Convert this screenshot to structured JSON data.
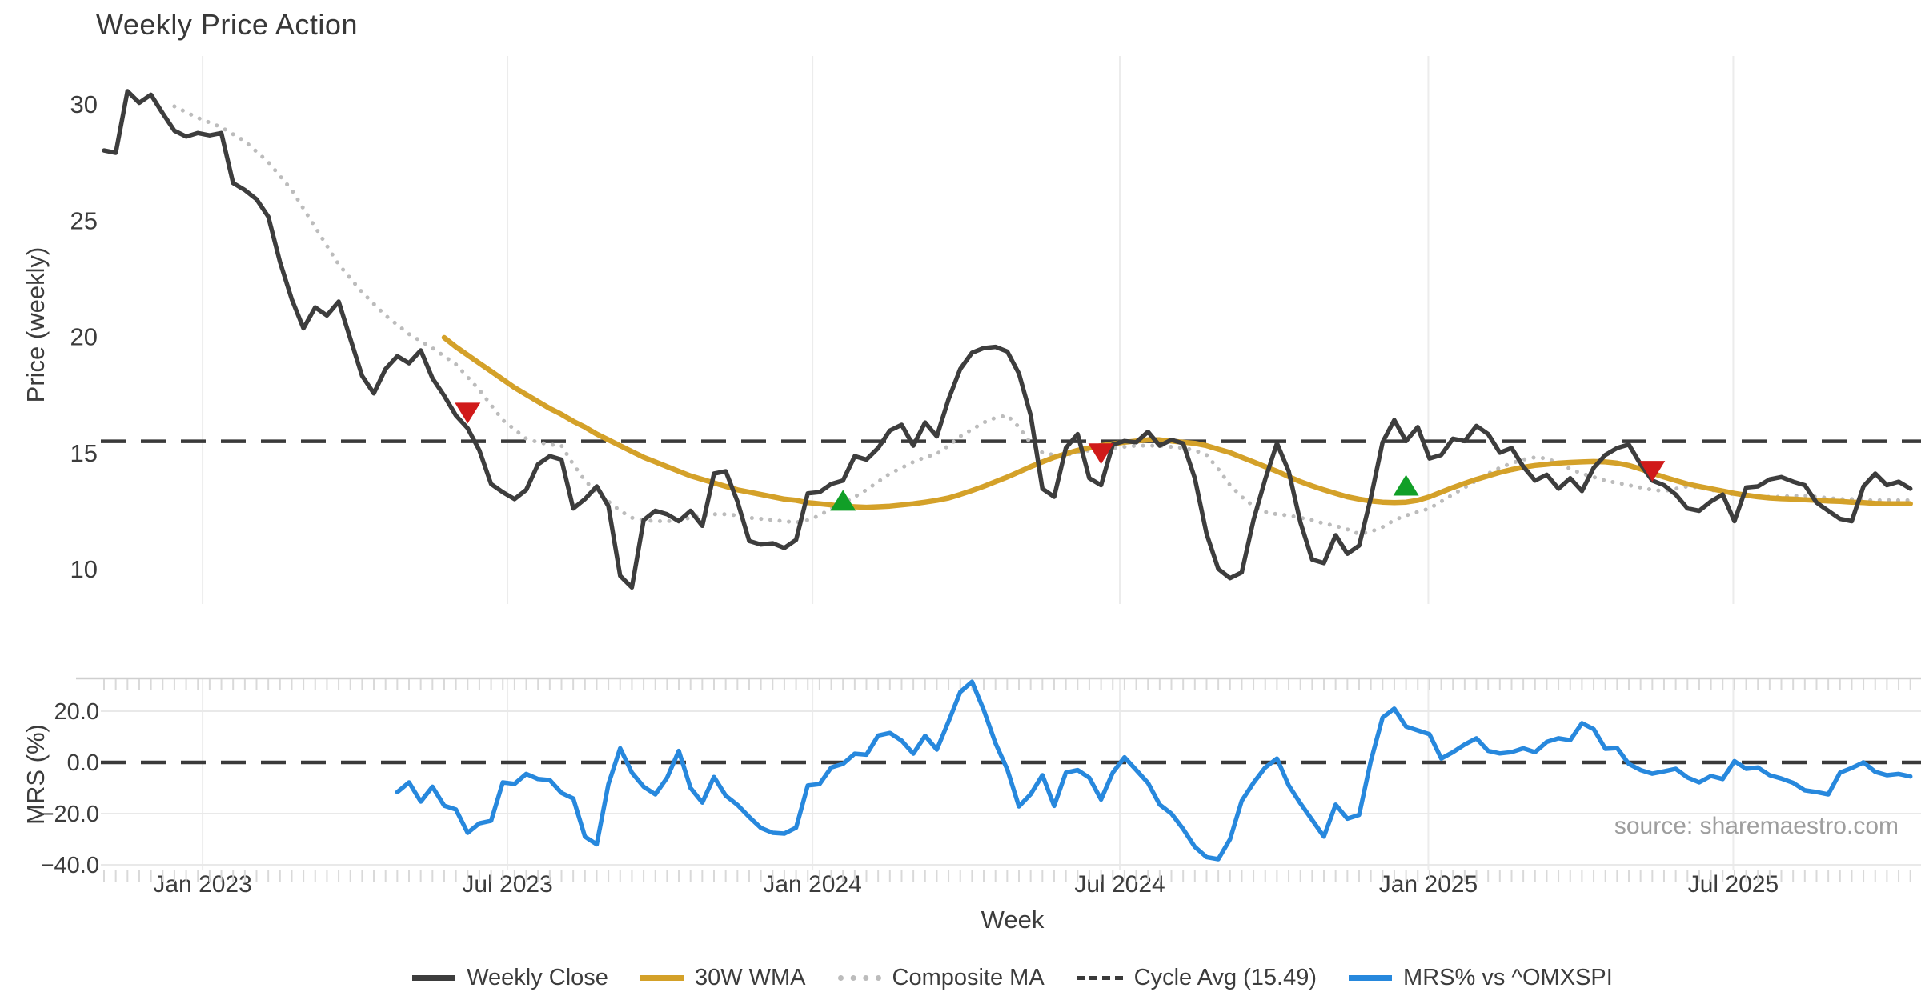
{
  "source_text": "source: sharemaestro.com",
  "colors": {
    "weekly_close": "#3d3d3d",
    "wma_30w": "#d4a129",
    "composite_ma": "#bcbcbc",
    "cycle_avg": "#3a3a3a",
    "mrs_blue": "#2788dd",
    "sell_marker": "#d01a1a",
    "buy_marker": "#119f27",
    "gridline": "#ececec",
    "mrs_hgrid": "#e9e9e9",
    "panel_spine": "#cfcfcf",
    "minor_tick": "#d9d9d9",
    "text": "#3c3c3c",
    "source": "#9e9e9e"
  },
  "legend": {
    "items": [
      {
        "label": "Weekly Close",
        "swatch": "solid-dark"
      },
      {
        "label": "30W WMA",
        "swatch": "solid-gold"
      },
      {
        "label": "Composite MA",
        "swatch": "dotted-gray"
      },
      {
        "label": "Cycle Avg (15.49)",
        "swatch": "dashed-dark"
      },
      {
        "label": "MRS% vs ^OMXSPI",
        "swatch": "solid-blue"
      }
    ]
  },
  "chart_data": {
    "type": "line",
    "title": "Weekly Price Action",
    "xlabel": "Week",
    "weeks_total": 155,
    "x_ticks": [
      {
        "week": 8.4,
        "label": "Jan 2023"
      },
      {
        "week": 34.4,
        "label": "Jul 2023"
      },
      {
        "week": 60.4,
        "label": "Jan 2024"
      },
      {
        "week": 86.6,
        "label": "Jul 2024"
      },
      {
        "week": 112.9,
        "label": "Jan 2025"
      },
      {
        "week": 138.9,
        "label": "Jul 2025"
      }
    ],
    "panels": [
      {
        "name": "price",
        "ylabel": "Price (weekly)",
        "ylim": [
          8.5,
          32.5
        ],
        "grid": "vertical-only",
        "yticks": [
          {
            "v": 30,
            "label": "30"
          },
          {
            "v": 25,
            "label": "25"
          },
          {
            "v": 20,
            "label": "20"
          },
          {
            "v": 15,
            "label": "15"
          },
          {
            "v": 10,
            "label": "10"
          }
        ],
        "cycle_avg": 15.49,
        "series": [
          {
            "name": "Weekly Close",
            "style": "solid",
            "start_week": 0,
            "values": [
              28.0,
              27.9,
              30.55,
              30.05,
              30.4,
              29.6,
              28.85,
              28.6,
              28.75,
              28.65,
              28.75,
              26.6,
              26.3,
              25.9,
              25.15,
              23.2,
              21.6,
              20.35,
              21.25,
              20.9,
              21.5,
              19.9,
              18.3,
              17.55,
              18.6,
              19.15,
              18.85,
              19.4,
              18.2,
              17.45,
              16.6,
              16.05,
              15.1,
              13.65,
              13.3,
              13.0,
              13.4,
              14.5,
              14.85,
              14.7,
              12.6,
              13.0,
              13.55,
              12.7,
              9.7,
              9.2,
              12.1,
              12.5,
              12.35,
              12.05,
              12.5,
              11.85,
              14.1,
              14.2,
              12.9,
              11.2,
              11.05,
              11.1,
              10.9,
              11.25,
              13.25,
              13.3,
              13.65,
              13.8,
              14.85,
              14.7,
              15.2,
              15.95,
              16.2,
              15.3,
              16.3,
              15.7,
              17.3,
              18.6,
              19.3,
              19.5,
              19.55,
              19.35,
              18.4,
              16.6,
              13.45,
              13.1,
              15.2,
              15.8,
              13.9,
              13.6,
              15.35,
              15.5,
              15.45,
              15.9,
              15.3,
              15.55,
              15.4,
              13.9,
              11.5,
              10.0,
              9.6,
              9.85,
              12.1,
              13.85,
              15.4,
              14.2,
              12.0,
              10.4,
              10.25,
              11.45,
              10.65,
              11.0,
              13.05,
              15.45,
              16.4,
              15.5,
              16.1,
              14.75,
              14.9,
              15.6,
              15.5,
              16.15,
              15.8,
              15.0,
              15.2,
              14.4,
              13.8,
              14.05,
              13.45,
              13.9,
              13.35,
              14.35,
              14.9,
              15.2,
              15.35,
              14.5,
              13.8,
              13.6,
              13.2,
              12.6,
              12.5,
              12.9,
              13.2,
              12.05,
              13.5,
              13.55,
              13.85,
              13.95,
              13.75,
              13.6,
              12.85,
              12.5,
              12.15,
              12.05,
              13.55,
              14.1,
              13.6,
              13.75,
              13.45
            ]
          },
          {
            "name": "30W WMA",
            "style": "solid",
            "start_week": 29,
            "values": [
              19.95,
              19.55,
              19.2,
              18.85,
              18.5,
              18.15,
              17.8,
              17.5,
              17.2,
              16.9,
              16.65,
              16.35,
              16.1,
              15.8,
              15.55,
              15.3,
              15.05,
              14.8,
              14.6,
              14.4,
              14.2,
              14.0,
              13.85,
              13.7,
              13.55,
              13.4,
              13.3,
              13.2,
              13.1,
              13.0,
              12.95,
              12.85,
              12.8,
              12.75,
              12.7,
              12.67,
              12.65,
              12.67,
              12.7,
              12.75,
              12.8,
              12.87,
              12.95,
              13.05,
              13.2,
              13.37,
              13.55,
              13.75,
              13.95,
              14.17,
              14.4,
              14.6,
              14.8,
              14.95,
              15.1,
              15.2,
              15.3,
              15.38,
              15.45,
              15.5,
              15.55,
              15.55,
              15.5,
              15.45,
              15.4,
              15.3,
              15.15,
              15.0,
              14.8,
              14.6,
              14.4,
              14.2,
              13.97,
              13.75,
              13.57,
              13.4,
              13.25,
              13.1,
              13.0,
              12.92,
              12.87,
              12.85,
              12.87,
              12.95,
              13.1,
              13.3,
              13.5,
              13.68,
              13.85,
              14.0,
              14.15,
              14.27,
              14.37,
              14.45,
              14.5,
              14.55,
              14.58,
              14.6,
              14.62,
              14.6,
              14.55,
              14.45,
              14.3,
              14.12,
              13.95,
              13.8,
              13.65,
              13.55,
              13.45,
              13.35,
              13.25,
              13.17,
              13.1,
              13.05,
              13.02,
              13.0,
              12.97,
              12.95,
              12.92,
              12.9,
              12.87,
              12.85,
              12.82,
              12.8,
              12.8,
              12.8
            ]
          },
          {
            "name": "Composite MA",
            "style": "dotted",
            "start_week": 6,
            "values": [
              29.9,
              29.65,
              29.4,
              29.2,
              29.0,
              28.7,
              28.4,
              27.95,
              27.5,
              26.9,
              26.3,
              25.5,
              24.7,
              23.9,
              23.1,
              22.5,
              21.9,
              21.4,
              20.9,
              20.5,
              20.1,
              19.8,
              19.5,
              19.15,
              18.8,
              18.25,
              17.7,
              17.05,
              16.4,
              16.0,
              15.6,
              15.45,
              15.35,
              15.3,
              14.5,
              13.8,
              13.3,
              12.9,
              12.5,
              12.2,
              12.1,
              12.05,
              12.05,
              12.1,
              12.2,
              12.3,
              12.35,
              12.35,
              12.3,
              12.2,
              12.15,
              12.1,
              12.05,
              12.0,
              12.1,
              12.3,
              12.6,
              12.8,
              13.1,
              13.4,
              13.75,
              14.1,
              14.35,
              14.6,
              14.8,
              14.95,
              15.3,
              15.7,
              16.0,
              16.3,
              16.5,
              16.6,
              16.1,
              15.4,
              15.0,
              14.9,
              14.9,
              15.0,
              15.1,
              15.15,
              15.2,
              15.25,
              15.3,
              15.3,
              15.3,
              15.25,
              15.2,
              15.1,
              14.9,
              14.3,
              13.6,
              13.1,
              12.7,
              12.45,
              12.35,
              12.3,
              12.2,
              12.1,
              11.95,
              11.85,
              11.7,
              11.5,
              11.6,
              11.8,
              12.1,
              12.3,
              12.45,
              12.6,
              12.9,
              13.2,
              13.5,
              13.8,
              14.1,
              14.35,
              14.55,
              14.7,
              14.8,
              14.75,
              14.55,
              14.3,
              14.1,
              13.95,
              13.8,
              13.7,
              13.6,
              13.5,
              13.4,
              13.35,
              13.45,
              13.55,
              13.5,
              13.4,
              13.3,
              13.2,
              13.15,
              13.1,
              13.1,
              13.1,
              13.15,
              13.15,
              13.1,
              13.05,
              13.0,
              13.0,
              12.95,
              12.95,
              12.95,
              12.95,
              12.95
            ]
          }
        ],
        "markers": {
          "sell": [
            {
              "week": 31,
              "price": 16.7
            },
            {
              "week": 85,
              "price": 14.95
            },
            {
              "week": 132,
              "price": 14.2
            }
          ],
          "buy": [
            {
              "week": 63,
              "price": 12.95
            },
            {
              "week": 111,
              "price": 13.6
            }
          ]
        }
      },
      {
        "name": "mrs",
        "ylabel": "MRS (%)",
        "ylim": [
          -42,
          33
        ],
        "zero_line": 0,
        "yticks": [
          {
            "v": 20,
            "label": "20.0"
          },
          {
            "v": 0,
            "label": "0.0"
          },
          {
            "v": -20,
            "label": "−20.0"
          },
          {
            "v": -40,
            "label": "−40.0"
          }
        ],
        "series": [
          {
            "name": "MRS% vs ^OMXSPI",
            "style": "solid",
            "start_week": 25,
            "values": [
              -11.6,
              -7.8,
              -15.3,
              -9.5,
              -16.9,
              -18.4,
              -27.5,
              -23.8,
              -22.8,
              -7.8,
              -8.4,
              -4.5,
              -6.5,
              -6.9,
              -11.9,
              -14.1,
              -29.0,
              -32.0,
              -8.5,
              5.5,
              -4.0,
              -9.5,
              -12.5,
              -6.0,
              4.5,
              -10.0,
              -15.7,
              -5.7,
              -13.0,
              -16.6,
              -21.3,
              -25.6,
              -27.5,
              -27.8,
              -25.5,
              -9.0,
              -8.5,
              -2.0,
              -0.6,
              3.4,
              3.0,
              10.5,
              11.5,
              8.5,
              3.4,
              10.4,
              5.0,
              16.0,
              27.5,
              31.5,
              20.5,
              7.5,
              -2.7,
              -17.2,
              -12.4,
              -5.0,
              -17.0,
              -4.0,
              -3.0,
              -6.0,
              -14.5,
              -4.0,
              2.0,
              -3.0,
              -8.0,
              -16.5,
              -20.0,
              -26.0,
              -33.0,
              -37.0,
              -37.8,
              -30.0,
              -15.0,
              -8.0,
              -2.0,
              1.5,
              -9.0,
              -16.0,
              -22.5,
              -29.0,
              -16.5,
              -22.0,
              -20.5,
              0.5,
              17.5,
              21.0,
              14.0,
              12.5,
              11.0,
              1.5,
              4.0,
              7.0,
              9.4,
              4.5,
              3.5,
              4.0,
              5.5,
              4.0,
              8.0,
              9.4,
              8.7,
              15.3,
              13.0,
              5.3,
              5.6,
              -0.6,
              -3.0,
              -4.4,
              -3.5,
              -2.5,
              -5.9,
              -7.8,
              -5.3,
              -6.5,
              0.5,
              -2.5,
              -2.0,
              -5.0,
              -6.3,
              -8.0,
              -10.9,
              -11.6,
              -12.5,
              -4.0,
              -2.2,
              0.0,
              -3.7,
              -5.0,
              -4.5,
              -5.5
            ]
          }
        ]
      }
    ]
  }
}
